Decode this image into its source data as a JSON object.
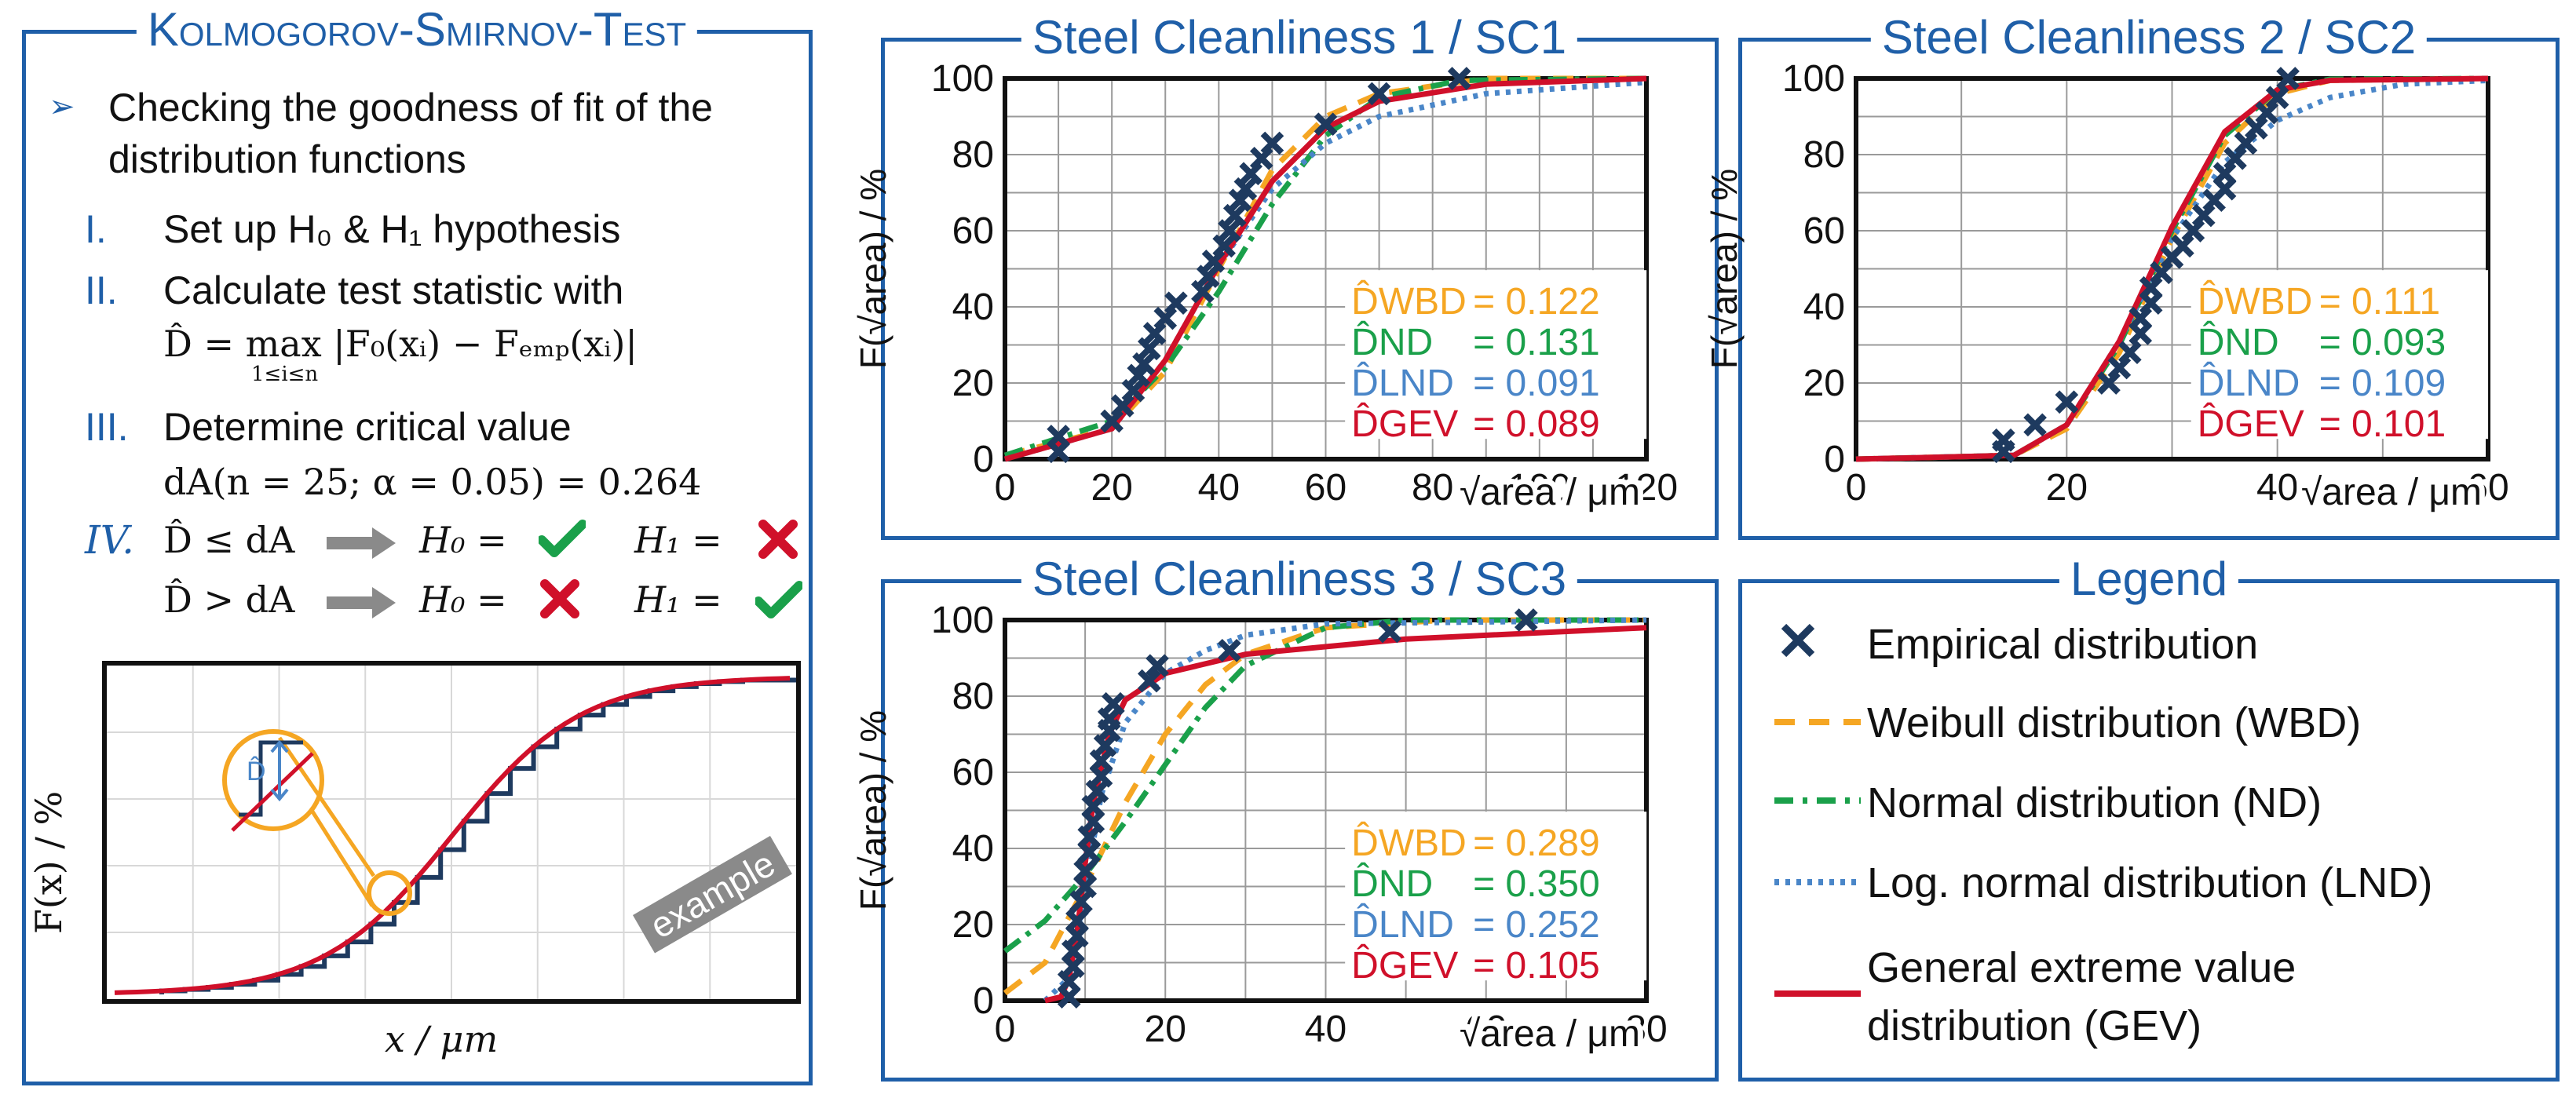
{
  "colors": {
    "frame": "#1f5fa8",
    "wbd": "#f5a623",
    "nd": "#1aa04a",
    "lnd": "#4a86c8",
    "gev": "#d0102a",
    "emp": "#1e3a5f",
    "check": "#1aa04a",
    "cross": "#d0102a",
    "zoom": "#f5a623",
    "grid": "#9a9a9a"
  },
  "ks": {
    "title": "Kolmogorov-Smirnov-Test",
    "bullet": "Checking the goodness of fit of the distribution functions",
    "steps": [
      {
        "num": "I.",
        "text": "Set up H₀ & H₁ hypothesis"
      },
      {
        "num": "II.",
        "text": "Calculate test statistic with",
        "formula": "D̂ = max |F₀(xᵢ) − Fₑₘₚ(xᵢ)|",
        "formula_sub": "1≤i≤n"
      },
      {
        "num": "III.",
        "text": "Determine critical value",
        "formula": "dA(n = 25; α = 0.05) = 0.264"
      },
      {
        "num": "IV.",
        "row1_left": "D̂ ≤ dA",
        "row2_left": "D̂ > dA",
        "h0": "H₀ =",
        "h1": "H₁ ="
      }
    ],
    "example": {
      "ylabel": "F(x) / %",
      "xlabel": "x / μm",
      "badge": "example",
      "d_label": "D̂"
    }
  },
  "legend": {
    "title": "Legend",
    "items": [
      {
        "key": "emp",
        "label": "Empirical distribution"
      },
      {
        "key": "wbd",
        "label": "Weibull distribution (WBD)"
      },
      {
        "key": "nd",
        "label": "Normal distribution (ND)"
      },
      {
        "key": "lnd",
        "label": "Log. normal distribution (LND)"
      },
      {
        "key": "gev",
        "label": "General extreme value distribution (GEV)"
      }
    ]
  },
  "chart_data": [
    {
      "type": "line",
      "title": "Steel Cleanliness 1 / SC1",
      "xlabel": "√area / μm",
      "ylabel": "F(√area) / %",
      "xlim": [
        0,
        120
      ],
      "ylim": [
        0,
        100
      ],
      "xticks": [
        "0",
        "20",
        "40",
        "60",
        "80",
        "100",
        "120"
      ],
      "yticks": [
        "0",
        "20",
        "40",
        "60",
        "80",
        "100"
      ],
      "stats": [
        {
          "key": "wbd",
          "label": "D̂WBD",
          "value": "= 0.122"
        },
        {
          "key": "nd",
          "label": "D̂ND",
          "value": "= 0.131"
        },
        {
          "key": "lnd",
          "label": "D̂LND",
          "value": "= 0.091"
        },
        {
          "key": "gev",
          "label": "D̂GEV",
          "value": "= 0.089"
        }
      ],
      "empirical": [
        [
          10,
          2
        ],
        [
          10,
          6
        ],
        [
          20,
          10
        ],
        [
          22,
          14
        ],
        [
          24,
          18
        ],
        [
          25,
          22
        ],
        [
          26,
          25
        ],
        [
          27,
          29
        ],
        [
          28,
          33
        ],
        [
          30,
          37
        ],
        [
          32,
          41
        ],
        [
          37,
          44
        ],
        [
          38,
          48
        ],
        [
          39,
          52
        ],
        [
          41,
          56
        ],
        [
          42,
          60
        ],
        [
          43,
          64
        ],
        [
          44,
          68
        ],
        [
          45,
          71
        ],
        [
          46,
          75
        ],
        [
          48,
          79
        ],
        [
          50,
          83
        ],
        [
          60,
          88
        ],
        [
          70,
          96
        ],
        [
          85,
          100
        ]
      ],
      "series": {
        "wbd": [
          [
            0,
            1
          ],
          [
            20,
            8
          ],
          [
            30,
            23
          ],
          [
            40,
            50
          ],
          [
            50,
            76
          ],
          [
            60,
            90
          ],
          [
            70,
            96
          ],
          [
            90,
            100
          ],
          [
            120,
            100
          ]
        ],
        "nd": [
          [
            0,
            1
          ],
          [
            20,
            10
          ],
          [
            30,
            24
          ],
          [
            40,
            44
          ],
          [
            50,
            67
          ],
          [
            60,
            85
          ],
          [
            70,
            95
          ],
          [
            85,
            99.5
          ],
          [
            120,
            100
          ]
        ],
        "lnd": [
          [
            0,
            0
          ],
          [
            20,
            8
          ],
          [
            30,
            26
          ],
          [
            40,
            51
          ],
          [
            50,
            71
          ],
          [
            60,
            83
          ],
          [
            70,
            90
          ],
          [
            90,
            96
          ],
          [
            120,
            99
          ]
        ],
        "gev": [
          [
            0,
            0
          ],
          [
            20,
            8
          ],
          [
            30,
            26
          ],
          [
            40,
            51
          ],
          [
            50,
            73
          ],
          [
            60,
            87
          ],
          [
            70,
            94
          ],
          [
            90,
            98.5
          ],
          [
            120,
            100
          ]
        ]
      }
    },
    {
      "type": "line",
      "title": "Steel Cleanliness 2 / SC2",
      "xlabel": "√area / μm",
      "ylabel": "F(√area) / %",
      "xlim": [
        0,
        60
      ],
      "ylim": [
        0,
        100
      ],
      "xticks": [
        "0",
        "20",
        "40",
        "60"
      ],
      "yticks": [
        "0",
        "20",
        "40",
        "60",
        "80",
        "100"
      ],
      "stats": [
        {
          "key": "wbd",
          "label": "D̂WBD",
          "value": "= 0.111"
        },
        {
          "key": "nd",
          "label": "D̂ND",
          "value": "= 0.093"
        },
        {
          "key": "lnd",
          "label": "D̂LND",
          "value": "= 0.109"
        },
        {
          "key": "gev",
          "label": "D̂GEV",
          "value": "= 0.101"
        }
      ],
      "empirical": [
        [
          14,
          2
        ],
        [
          14,
          5
        ],
        [
          17,
          9
        ],
        [
          20,
          15
        ],
        [
          24,
          20
        ],
        [
          25,
          24
        ],
        [
          26,
          28
        ],
        [
          27,
          33
        ],
        [
          27,
          37
        ],
        [
          28,
          41
        ],
        [
          28,
          45
        ],
        [
          29,
          49
        ],
        [
          30,
          53
        ],
        [
          31,
          56
        ],
        [
          32,
          60
        ],
        [
          33,
          64
        ],
        [
          34,
          68
        ],
        [
          35,
          71
        ],
        [
          35,
          75
        ],
        [
          36,
          79
        ],
        [
          37,
          83
        ],
        [
          38,
          87
        ],
        [
          39,
          91
        ],
        [
          40,
          95
        ],
        [
          41,
          100
        ]
      ],
      "series": {
        "wbd": [
          [
            0,
            0
          ],
          [
            15,
            1
          ],
          [
            20,
            8
          ],
          [
            25,
            28
          ],
          [
            30,
            58
          ],
          [
            35,
            83
          ],
          [
            40,
            96
          ],
          [
            45,
            99.5
          ],
          [
            60,
            100
          ]
        ],
        "nd": [
          [
            0,
            0
          ],
          [
            15,
            1
          ],
          [
            20,
            9
          ],
          [
            25,
            30
          ],
          [
            30,
            60
          ],
          [
            35,
            85
          ],
          [
            40,
            97
          ],
          [
            45,
            99.8
          ],
          [
            60,
            100
          ]
        ],
        "lnd": [
          [
            0,
            0
          ],
          [
            15,
            1
          ],
          [
            20,
            9
          ],
          [
            25,
            31
          ],
          [
            30,
            58
          ],
          [
            35,
            78
          ],
          [
            40,
            89
          ],
          [
            45,
            95
          ],
          [
            52,
            98.5
          ],
          [
            60,
            99.5
          ]
        ],
        "gev": [
          [
            0,
            0
          ],
          [
            15,
            1
          ],
          [
            20,
            9
          ],
          [
            25,
            31
          ],
          [
            30,
            61
          ],
          [
            35,
            86
          ],
          [
            40,
            97
          ],
          [
            45,
            99.5
          ],
          [
            60,
            100
          ]
        ]
      }
    },
    {
      "type": "line",
      "title": "Steel Cleanliness 3 / SC3",
      "xlabel": "√area / μm",
      "ylabel": "F(√area) / %",
      "xlim": [
        0,
        80
      ],
      "ylim": [
        0,
        100
      ],
      "xticks": [
        "0",
        "20",
        "40",
        "60",
        "80"
      ],
      "yticks": [
        "0",
        "20",
        "40",
        "60",
        "80",
        "100"
      ],
      "stats": [
        {
          "key": "wbd",
          "label": "D̂WBD",
          "value": "= 0.289"
        },
        {
          "key": "nd",
          "label": "D̂ND",
          "value": "= 0.350"
        },
        {
          "key": "lnd",
          "label": "D̂LND",
          "value": "= 0.252"
        },
        {
          "key": "gev",
          "label": "D̂GEV",
          "value": "= 0.105"
        }
      ],
      "empirical": [
        [
          8,
          1
        ],
        [
          8,
          5
        ],
        [
          8.5,
          9
        ],
        [
          8.5,
          13
        ],
        [
          9,
          17
        ],
        [
          9,
          21
        ],
        [
          9.5,
          26
        ],
        [
          10,
          30
        ],
        [
          10,
          34
        ],
        [
          10.5,
          39
        ],
        [
          10.5,
          43
        ],
        [
          11,
          47
        ],
        [
          11,
          51
        ],
        [
          11.5,
          55
        ],
        [
          12,
          59
        ],
        [
          12,
          63
        ],
        [
          12.5,
          67
        ],
        [
          13,
          71
        ],
        [
          13,
          74
        ],
        [
          13.5,
          78
        ],
        [
          18,
          84
        ],
        [
          19,
          88
        ],
        [
          28,
          92
        ],
        [
          48,
          97
        ],
        [
          65,
          100
        ]
      ],
      "series": {
        "wbd": [
          [
            0,
            2
          ],
          [
            5,
            10
          ],
          [
            10,
            30
          ],
          [
            15,
            52
          ],
          [
            20,
            70
          ],
          [
            25,
            83
          ],
          [
            30,
            91
          ],
          [
            40,
            98
          ],
          [
            55,
            100
          ],
          [
            80,
            100
          ]
        ],
        "nd": [
          [
            0,
            13
          ],
          [
            5,
            21
          ],
          [
            10,
            33
          ],
          [
            15,
            47
          ],
          [
            20,
            62
          ],
          [
            25,
            77
          ],
          [
            30,
            88
          ],
          [
            40,
            98
          ],
          [
            50,
            100
          ],
          [
            80,
            100
          ]
        ],
        "lnd": [
          [
            5,
            0
          ],
          [
            8,
            6
          ],
          [
            10,
            29
          ],
          [
            12,
            54
          ],
          [
            15,
            73
          ],
          [
            20,
            86
          ],
          [
            25,
            92
          ],
          [
            30,
            96
          ],
          [
            40,
            99
          ],
          [
            80,
            100
          ]
        ],
        "gev": [
          [
            5,
            0
          ],
          [
            7,
            1
          ],
          [
            8,
            6
          ],
          [
            9,
            18
          ],
          [
            10,
            36
          ],
          [
            11,
            52
          ],
          [
            13,
            70
          ],
          [
            15,
            79
          ],
          [
            20,
            86
          ],
          [
            30,
            91
          ],
          [
            50,
            95
          ],
          [
            80,
            98
          ]
        ]
      }
    }
  ]
}
